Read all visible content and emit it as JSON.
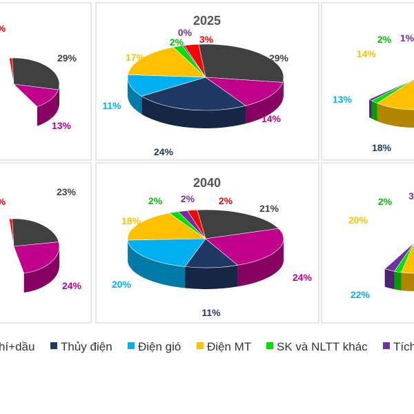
{
  "colors": {
    "gas_oil": "#404040",
    "hydro": "#1f3864",
    "wind": "#00b0f0",
    "solar": "#ffc000",
    "biomass": "#00e000",
    "storage": "#7030a0",
    "other": "#ff0000",
    "coal": "#c0008a"
  },
  "chart_data": [
    {
      "type": "pie",
      "title": "",
      "slices": [
        {
          "key": "other",
          "value": 1,
          "label": "%",
          "label_color": "#ff0000"
        },
        {
          "key": "gas_oil",
          "value": 29,
          "label": "29%",
          "label_color": "#404040"
        },
        {
          "key": "coal",
          "value": 13,
          "label": "13%",
          "label_color": "#c0008a"
        }
      ]
    },
    {
      "type": "pie",
      "title": "2025",
      "slices": [
        {
          "key": "gas_oil",
          "value": 29,
          "label": "29%",
          "label_color": "#404040"
        },
        {
          "key": "coal",
          "value": 14,
          "label": "14%",
          "label_color": "#c0008a"
        },
        {
          "key": "hydro",
          "value": 24,
          "label": "24%",
          "label_color": "#1f3864"
        },
        {
          "key": "wind",
          "value": 11,
          "label": "11%",
          "label_color": "#00b0f0"
        },
        {
          "key": "solar",
          "value": 17,
          "label": "17%",
          "label_color": "#ffc000"
        },
        {
          "key": "biomass",
          "value": 2,
          "label": "2%",
          "label_color": "#00c000"
        },
        {
          "key": "storage",
          "value": 0.4,
          "label": "0%",
          "label_color": "#7030a0"
        },
        {
          "key": "other",
          "value": 3,
          "label": "3%",
          "label_color": "#ff0000"
        }
      ]
    },
    {
      "type": "pie",
      "title": "",
      "slices": [
        {
          "key": "hydro",
          "value": 18,
          "label": "18%",
          "label_color": "#1f3864"
        },
        {
          "key": "wind",
          "value": 13,
          "label": "13%",
          "label_color": "#00b0f0"
        },
        {
          "key": "solar",
          "value": 14,
          "label": "14%",
          "label_color": "#ffc000"
        },
        {
          "key": "biomass",
          "value": 2,
          "label": "2%",
          "label_color": "#00c000"
        },
        {
          "key": "storage",
          "value": 1,
          "label": "1%",
          "label_color": "#7030a0"
        }
      ]
    },
    {
      "type": "pie",
      "title": "",
      "slices": [
        {
          "key": "other",
          "value": 1,
          "label": "%",
          "label_color": "#ff0000"
        },
        {
          "key": "gas_oil",
          "value": 23,
          "label": "23%",
          "label_color": "#404040"
        },
        {
          "key": "coal",
          "value": 24,
          "label": "24%",
          "label_color": "#c0008a"
        }
      ]
    },
    {
      "type": "pie",
      "title": "2040",
      "slices": [
        {
          "key": "gas_oil",
          "value": 21,
          "label": "21%",
          "label_color": "#404040"
        },
        {
          "key": "coal",
          "value": 24,
          "label": "24%",
          "label_color": "#c0008a"
        },
        {
          "key": "hydro",
          "value": 11,
          "label": "11%",
          "label_color": "#1f3864"
        },
        {
          "key": "wind",
          "value": 20,
          "label": "20%",
          "label_color": "#00b0f0"
        },
        {
          "key": "solar",
          "value": 18,
          "label": "18%",
          "label_color": "#ffc000"
        },
        {
          "key": "biomass",
          "value": 2,
          "label": "2%",
          "label_color": "#00c000"
        },
        {
          "key": "storage",
          "value": 2,
          "label": "2%",
          "label_color": "#7030a0"
        },
        {
          "key": "other",
          "value": 2,
          "label": "2%",
          "label_color": "#ff0000"
        }
      ]
    },
    {
      "type": "pie",
      "title": "",
      "slices": [
        {
          "key": "wind",
          "value": 22,
          "label": "22%",
          "label_color": "#00b0f0"
        },
        {
          "key": "solar",
          "value": 20,
          "label": "20%",
          "label_color": "#ffc000"
        },
        {
          "key": "biomass",
          "value": 2,
          "label": "2%",
          "label_color": "#00c000"
        },
        {
          "key": "storage",
          "value": 3,
          "label": "3",
          "label_color": "#7030a0"
        }
      ]
    }
  ],
  "legend": [
    {
      "key": "gas_oil",
      "label": "hí+dầu"
    },
    {
      "key": "hydro",
      "label": "Thủy điện"
    },
    {
      "key": "wind",
      "label": "Điện gió"
    },
    {
      "key": "solar",
      "label": "Điện MT"
    },
    {
      "key": "biomass",
      "label": "SK và NLTT khác"
    },
    {
      "key": "storage",
      "label": "Tích"
    }
  ]
}
